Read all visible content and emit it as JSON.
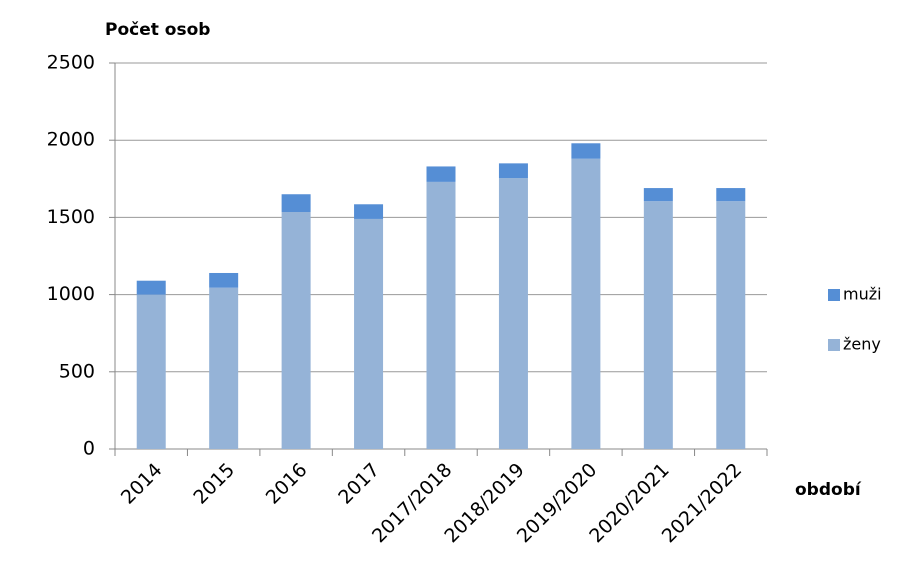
{
  "chart_data": {
    "type": "stacked_bar",
    "title": "Počet osob",
    "x_label": "období",
    "categories": [
      "2014",
      "2015",
      "2016",
      "2017",
      "2017/2018",
      "2018/2019",
      "2019/2020",
      "2020/2021",
      "2021/2022"
    ],
    "series": [
      {
        "name": "ženy",
        "color": "#95b3d7",
        "values": [
          1000,
          1045,
          1535,
          1490,
          1730,
          1755,
          1880,
          1605,
          1605
        ]
      },
      {
        "name": "muži",
        "color": "#558ed5",
        "values": [
          90,
          95,
          115,
          95,
          100,
          95,
          100,
          85,
          85
        ]
      }
    ],
    "ylim": [
      0,
      2500
    ],
    "yticks": [
      0,
      500,
      1000,
      1500,
      2000,
      2500
    ],
    "grid": true,
    "legend": "right"
  }
}
